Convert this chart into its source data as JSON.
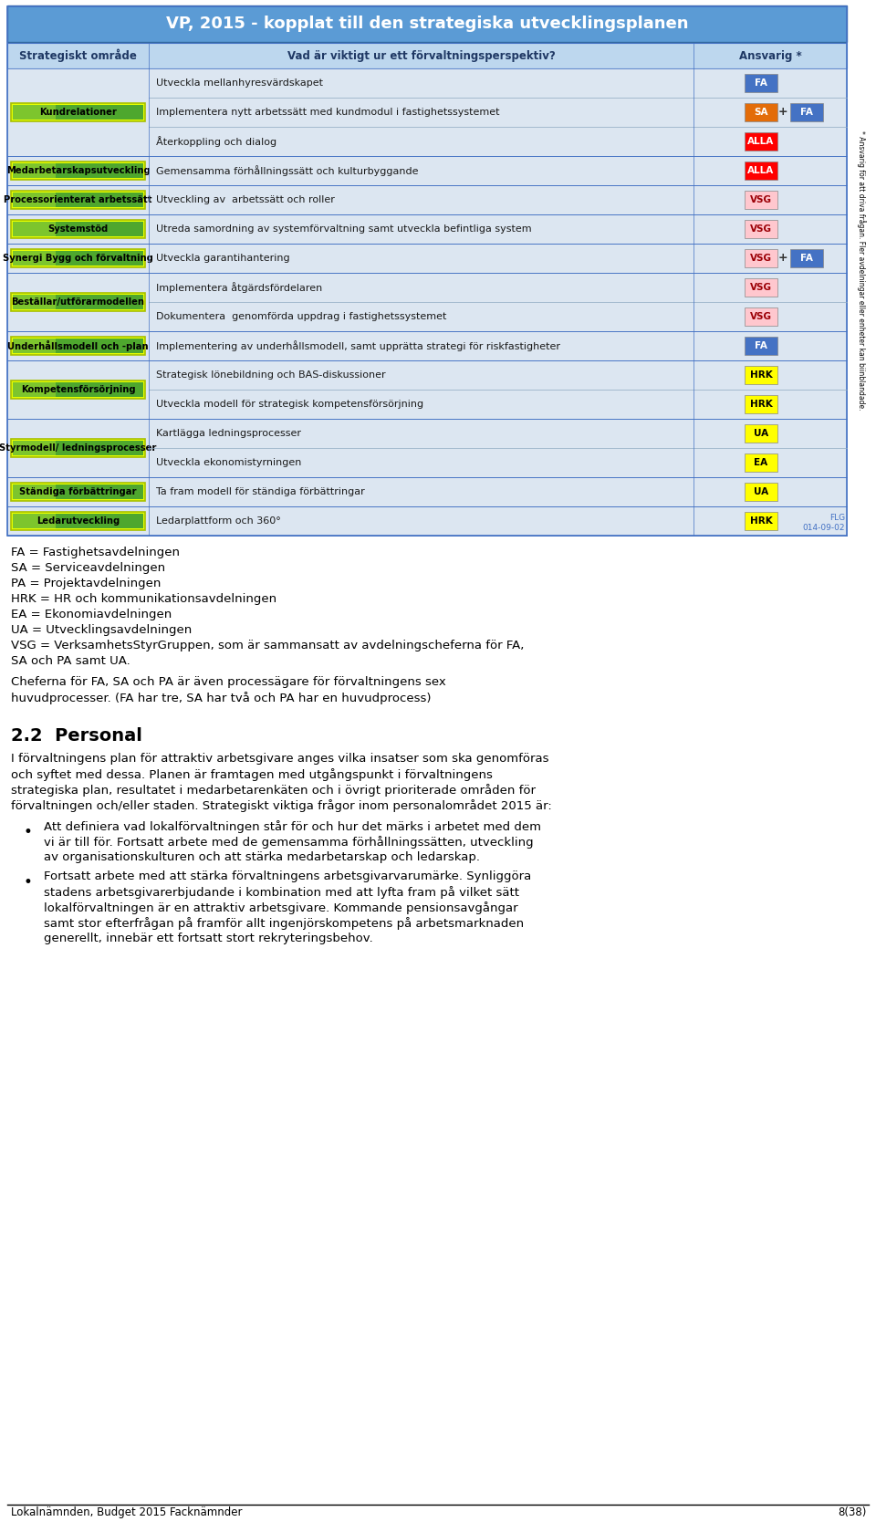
{
  "title": "VP, 2015 - kopplat till den strategiska utvecklingsplanen",
  "title_bg": "#5b9bd5",
  "title_color": "#ffffff",
  "header_bg": "#bdd7ee",
  "header_color": "#1f3864",
  "row_bg_light": "#dce6f1",
  "row_bg_dark": "#c5d9f1",
  "col_headers": [
    "Strategiskt område",
    "Vad är viktigt ur ett förvaltningsperspektiv?",
    "Ansvarig *"
  ],
  "rows": [
    {
      "area": "Kundrelationer",
      "tasks": [
        {
          "text": "Utveckla mellanhyresvärdskapet",
          "badge": "FA",
          "badge_color": "#4472c4",
          "badge_tc": "#ffffff",
          "badge2": null,
          "plus": false
        },
        {
          "text": "Implementera nytt arbetssätt med kundmodul i fastighetssystemet",
          "badge": "SA",
          "badge_color": "#e36c09",
          "badge_tc": "#ffffff",
          "badge2": "FA",
          "badge2_color": "#4472c4",
          "badge2_tc": "#ffffff",
          "plus": true
        },
        {
          "text": "Återkoppling och dialog",
          "badge": "ALLA",
          "badge_color": "#ff0000",
          "badge_tc": "#ffffff",
          "badge2": null,
          "plus": false
        }
      ]
    },
    {
      "area": "Medarbetarskapsutveckling",
      "tasks": [
        {
          "text": "Gemensamma förhållningssätt och kulturbyggande",
          "badge": "ALLA",
          "badge_color": "#ff0000",
          "badge_tc": "#ffffff",
          "badge2": null,
          "plus": false
        }
      ]
    },
    {
      "area": "Processorienterat arbetssätt",
      "tasks": [
        {
          "text": "Utveckling av  arbetssätt och roller",
          "badge": "VSG",
          "badge_color": "#ffc7ce",
          "badge_tc": "#9c0006",
          "badge2": null,
          "plus": false
        }
      ]
    },
    {
      "area": "Systemstöd",
      "tasks": [
        {
          "text": "Utreda samordning av systemförvaltning samt utveckla befintliga system",
          "badge": "VSG",
          "badge_color": "#ffc7ce",
          "badge_tc": "#9c0006",
          "badge2": null,
          "plus": false
        }
      ]
    },
    {
      "area": "Synergi Bygg och förvaltning",
      "tasks": [
        {
          "text": "Utveckla garantihantering",
          "badge": "VSG",
          "badge_color": "#ffc7ce",
          "badge_tc": "#9c0006",
          "badge2": "FA",
          "badge2_color": "#4472c4",
          "badge2_tc": "#ffffff",
          "plus": true
        }
      ]
    },
    {
      "area": "Beställar/utförarmodellen",
      "tasks": [
        {
          "text": "Implementera åtgärdsfördelaren",
          "badge": "VSG",
          "badge_color": "#ffc7ce",
          "badge_tc": "#9c0006",
          "badge2": null,
          "plus": false
        },
        {
          "text": "Dokumentera  genomförda uppdrag i fastighetssystemet",
          "badge": "VSG",
          "badge_color": "#ffc7ce",
          "badge_tc": "#9c0006",
          "badge2": null,
          "plus": false
        }
      ]
    },
    {
      "area": "Underhållsmodell och -plan",
      "tasks": [
        {
          "text": "Implementering av underhållsmodell, samt upprätta strategi för riskfastigheter",
          "badge": "FA",
          "badge_color": "#4472c4",
          "badge_tc": "#ffffff",
          "badge2": null,
          "plus": false
        }
      ]
    },
    {
      "area": "Kompetensförsörjning",
      "tasks": [
        {
          "text": "Strategisk lönebildning och BAS-diskussioner",
          "badge": "HRK",
          "badge_color": "#ffff00",
          "badge_tc": "#000000",
          "badge2": null,
          "plus": false
        },
        {
          "text": "Utveckla modell för strategisk kompetensförsörjning",
          "badge": "HRK",
          "badge_color": "#ffff00",
          "badge_tc": "#000000",
          "badge2": null,
          "plus": false
        }
      ]
    },
    {
      "area": "Styrmodell/ ledningsprocesser",
      "tasks": [
        {
          "text": "Kartlägga ledningsprocesser",
          "badge": "UA",
          "badge_color": "#ffff00",
          "badge_tc": "#000000",
          "badge2": null,
          "plus": false
        },
        {
          "text": "Utveckla ekonomistyrningen",
          "badge": "EA",
          "badge_color": "#ffff00",
          "badge_tc": "#000000",
          "badge2": null,
          "plus": false
        }
      ]
    },
    {
      "area": "Ständiga förbättringar",
      "tasks": [
        {
          "text": "Ta fram modell för ständiga förbättringar",
          "badge": "UA",
          "badge_color": "#ffff00",
          "badge_tc": "#000000",
          "badge2": null,
          "plus": false
        }
      ]
    },
    {
      "area": "Ledarutveckling",
      "tasks": [
        {
          "text": "Ledarplattform och 360°",
          "badge": "HRK",
          "badge_color": "#ffff00",
          "badge_tc": "#000000",
          "badge2": null,
          "plus": false
        }
      ]
    }
  ],
  "flg_text": "FLG\n014-09-02",
  "legend_lines": [
    "FA = Fastighetsavdelningen",
    "SA = Serviceavdelningen",
    "PA = Projektavdelningen",
    "HRK = HR och kommunikationsavdelningen",
    "EA = Ekonomiavdelningen",
    "UA = Utvecklingsavdelningen",
    "VSG = VerksamhetsStyrGruppen, som är sammansatt av avdelningscheferna för FA,",
    "SA och PA samt UA."
  ],
  "para1_line1": "Cheferna för FA, SA och PA är även processägare för förvaltningens sex",
  "para1_line2": "huvudprocesser. (FA har tre, SA har två och PA har en huvudprocess)",
  "section_title": "2.2  Personal",
  "para2_lines": [
    "I förvaltningens plan för attraktiv arbetsgivare anges vilka insatser som ska genomföras",
    "och syftet med dessa. Planen är framtagen med utgångspunkt i förvaltningens",
    "strategiska plan, resultatet i medarbetarenkäten och i övrigt prioriterade områden för",
    "förvaltningen och/eller staden. Strategiskt viktiga frågor inom personalområdet 2015 är:"
  ],
  "bullet1_lines": [
    "Att definiera vad lokalförvaltningen står för och hur det märks i arbetet med dem",
    "vi är till för. Fortsatt arbete med de gemensamma förhållningssätten, utveckling",
    "av organisationskulturen och att stärka medarbetarskap och ledarskap."
  ],
  "bullet2_lines": [
    "Fortsatt arbete med att stärka förvaltningens arbetsgivarvarumärke. Synliggöra",
    "stadens arbetsgivarerbjudande i kombination med att lyfta fram på vilket sätt",
    "lokalförvaltningen är en attraktiv arbetsgivare. Kommande pensionsavgångar",
    "samt stor efterfrågan på framför allt ingenjörskompetens på arbetsmarknaden",
    "generellt, innebär ett fortsatt stort rekryteringsbehov."
  ],
  "footer_left": "Lokalnämnden, Budget 2015 Facknämnder",
  "footer_right": "8(38)",
  "side_text": "* Ansvarig för att driva frågan. Fler avdelningar eller enheter kan biinblandade."
}
